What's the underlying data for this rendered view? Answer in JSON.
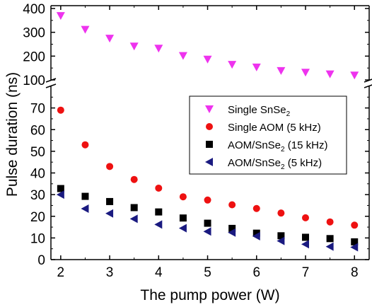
{
  "chart_data": {
    "type": "scatter",
    "xlabel": "The pump power (W)",
    "ylabel": "Pulse duration (ns)",
    "x_ticks": [
      "2",
      "3",
      "4",
      "5",
      "6",
      "7",
      "8"
    ],
    "xlim": [
      1.8,
      8.3
    ],
    "axis_break": true,
    "lower_panel": {
      "ylim": [
        0,
        80
      ],
      "y_ticks": [
        "0",
        "10",
        "20",
        "30",
        "40",
        "50",
        "60",
        "70"
      ]
    },
    "upper_panel": {
      "ylim": [
        100,
        400
      ],
      "y_ticks": [
        "100",
        "200",
        "300",
        "400"
      ]
    },
    "legend_position": "center-right",
    "series": [
      {
        "name": "Single SnSe",
        "name_sub": "2",
        "name_suffix": "",
        "marker": "triangle-down",
        "color": "#ee33ee",
        "panel": "upper",
        "x": [
          2,
          2.5,
          3,
          3.5,
          4,
          4.5,
          5,
          5.5,
          6,
          6.5,
          7,
          7.5,
          8
        ],
        "y": [
          370,
          312,
          275,
          242,
          233,
          202,
          187,
          165,
          154,
          139,
          132,
          125,
          120
        ]
      },
      {
        "name": "Single AOM (5 kHz)",
        "name_sub": "",
        "name_suffix": "",
        "marker": "circle",
        "color": "#ee1111",
        "panel": "lower",
        "x": [
          2,
          2.5,
          3,
          3.5,
          4,
          4.5,
          5,
          5.5,
          6,
          6.5,
          7,
          7.5,
          8
        ],
        "y": [
          69,
          53,
          43,
          37,
          33,
          29,
          27.5,
          25.3,
          23.6,
          21.5,
          19.3,
          17.4,
          15.9
        ]
      },
      {
        "name": "AOM/SnSe",
        "name_sub": "2",
        "name_suffix": " (15 kHz)",
        "marker": "square",
        "color": "#000000",
        "panel": "lower",
        "x": [
          2,
          2.5,
          3,
          3.5,
          4,
          4.5,
          5,
          5.5,
          6,
          6.5,
          7,
          7.5,
          8
        ],
        "y": [
          32.8,
          29.2,
          26.8,
          24,
          22,
          19.2,
          16.8,
          14.4,
          12.2,
          11,
          10.3,
          9.7,
          8.2
        ]
      },
      {
        "name": "AOM/SnSe",
        "name_sub": "2",
        "name_suffix": " (5 kHz)",
        "marker": "triangle-left",
        "color": "#1a1a80",
        "panel": "lower",
        "x": [
          2,
          2.5,
          3,
          3.5,
          4,
          4.5,
          5,
          5.5,
          6,
          6.5,
          7,
          7.5,
          8
        ],
        "y": [
          30,
          23.5,
          21.3,
          18.8,
          16.2,
          14.5,
          13,
          12.5,
          10.8,
          8.6,
          7.1,
          6,
          5.7
        ]
      }
    ]
  }
}
